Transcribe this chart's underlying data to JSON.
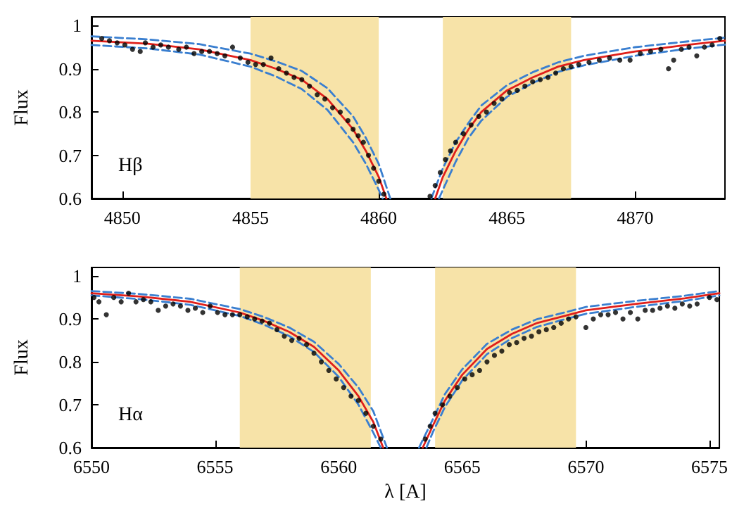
{
  "chart_data": [
    {
      "type": "scatter",
      "ylabel": "Flux",
      "annotations": [
        "Hβ"
      ],
      "xlim": [
        4848.8,
        4873.5
      ],
      "xticks": [
        4850,
        4855,
        4860,
        4865,
        4870
      ],
      "ylim": [
        0.6,
        1.02
      ],
      "yticks": [
        0.6,
        0.7,
        0.8,
        0.9,
        {
          "value": 1,
          "label": "1"
        }
      ],
      "grid": false,
      "bands": [
        {
          "axis": "x",
          "from": 4855,
          "to": 4860,
          "color": "#f7e3a8"
        },
        {
          "axis": "x",
          "from": 4862.5,
          "to": 4867.5,
          "color": "#f7e3a8"
        }
      ],
      "series": [
        {
          "type": "scatter",
          "color": "#000000",
          "marker": "circle",
          "x": [
            4849.2,
            4849.5,
            4849.8,
            4850.1,
            4850.4,
            4850.7,
            4850.9,
            4851.2,
            4851.5,
            4851.8,
            4852.2,
            4852.5,
            4852.8,
            4853.1,
            4853.4,
            4853.7,
            4854.0,
            4854.3,
            4854.6,
            4854.9,
            4855.2,
            4855.5,
            4855.8,
            4856.1,
            4856.4,
            4856.7,
            4857.0,
            4857.3,
            4857.6,
            4857.9,
            4858.2,
            4858.5,
            4858.8,
            4859.0,
            4859.2,
            4859.4,
            4859.6,
            4859.8,
            4860.0,
            4860.2,
            4862.0,
            4862.2,
            4862.4,
            4862.6,
            4862.8,
            4863.0,
            4863.3,
            4863.6,
            4863.9,
            4864.2,
            4864.5,
            4864.8,
            4865.1,
            4865.4,
            4865.7,
            4866.0,
            4866.3,
            4866.6,
            4866.9,
            4867.2,
            4867.5,
            4867.8,
            4868.2,
            4868.6,
            4869.0,
            4869.4,
            4869.8,
            4870.2,
            4870.6,
            4871.0,
            4871.3,
            4871.5,
            4871.8,
            4872.1,
            4872.4,
            4872.7,
            4873.0,
            4873.3
          ],
          "values": [
            0.97,
            0.965,
            0.96,
            0.955,
            0.945,
            0.94,
            0.96,
            0.95,
            0.955,
            0.95,
            0.945,
            0.95,
            0.935,
            0.94,
            0.94,
            0.935,
            0.93,
            0.95,
            0.925,
            0.915,
            0.91,
            0.91,
            0.925,
            0.9,
            0.89,
            0.88,
            0.875,
            0.86,
            0.84,
            0.83,
            0.81,
            0.8,
            0.78,
            0.76,
            0.745,
            0.73,
            0.7,
            0.67,
            0.64,
            0.61,
            0.605,
            0.63,
            0.66,
            0.69,
            0.71,
            0.73,
            0.75,
            0.77,
            0.79,
            0.8,
            0.82,
            0.83,
            0.845,
            0.85,
            0.86,
            0.87,
            0.875,
            0.88,
            0.89,
            0.9,
            0.905,
            0.91,
            0.915,
            0.92,
            0.925,
            0.92,
            0.92,
            0.935,
            0.94,
            0.945,
            0.9,
            0.92,
            0.945,
            0.95,
            0.93,
            0.95,
            0.955,
            0.97
          ]
        },
        {
          "type": "line",
          "color": "#3a7fd0",
          "line_style": "dashed",
          "x": [
            4848.8,
            4851,
            4853,
            4855,
            4856,
            4857,
            4858,
            4859,
            4859.5,
            4860,
            4860.15,
            4861.2,
            4862.35,
            4862.5,
            4863,
            4863.5,
            4864,
            4865,
            4866,
            4867,
            4868,
            4870,
            4872,
            4873.5
          ],
          "values": [
            0.955,
            0.947,
            0.933,
            0.905,
            0.882,
            0.853,
            0.805,
            0.73,
            0.68,
            0.62,
            0.6,
            null,
            0.6,
            0.62,
            0.685,
            0.74,
            0.78,
            0.835,
            0.867,
            0.893,
            0.908,
            0.93,
            0.946,
            0.956
          ]
        },
        {
          "type": "line",
          "color": "#3a7fd0",
          "line_style": "dashed",
          "x": [
            4848.8,
            4851,
            4853,
            4855,
            4856,
            4857,
            4858,
            4859,
            4859.5,
            4860,
            4860.45,
            4861.2,
            4862.05,
            4862.5,
            4863,
            4863.5,
            4864,
            4865,
            4866,
            4867,
            4868,
            4870,
            4872,
            4873.5
          ],
          "values": [
            0.975,
            0.968,
            0.957,
            0.935,
            0.917,
            0.895,
            0.855,
            0.79,
            0.74,
            0.68,
            0.6,
            null,
            0.6,
            0.67,
            0.73,
            0.775,
            0.815,
            0.862,
            0.892,
            0.915,
            0.93,
            0.95,
            0.963,
            0.972
          ]
        },
        {
          "type": "line",
          "color": "#e0201b",
          "line_style": "solid",
          "x": [
            4848.8,
            4851,
            4853,
            4855,
            4856,
            4857,
            4858,
            4859,
            4859.5,
            4860,
            4860.3,
            4861.2,
            4862.2,
            4862.5,
            4863,
            4863.5,
            4864,
            4865,
            4866,
            4867,
            4868,
            4870,
            4872,
            4873.5
          ],
          "values": [
            0.965,
            0.958,
            0.945,
            0.92,
            0.9,
            0.875,
            0.83,
            0.76,
            0.71,
            0.65,
            0.6,
            null,
            0.6,
            0.65,
            0.71,
            0.76,
            0.8,
            0.85,
            0.88,
            0.905,
            0.92,
            0.94,
            0.955,
            0.965
          ]
        }
      ]
    },
    {
      "type": "scatter",
      "xlabel": "λ [A]",
      "ylabel": "Flux",
      "annotations": [
        "Hα"
      ],
      "xlim": [
        6550,
        6575.4
      ],
      "xticks": [
        6550,
        6555,
        6560,
        6565,
        6570,
        6575
      ],
      "ylim": [
        0.6,
        1.02
      ],
      "yticks": [
        0.6,
        0.7,
        0.8,
        0.9,
        {
          "value": 1,
          "label": "1"
        }
      ],
      "grid": false,
      "bands": [
        {
          "axis": "x",
          "from": 6556,
          "to": 6561.3,
          "color": "#f7e3a8"
        },
        {
          "axis": "x",
          "from": 6563.9,
          "to": 6569.6,
          "color": "#f7e3a8"
        }
      ],
      "series": [
        {
          "type": "scatter",
          "color": "#000000",
          "marker": "circle",
          "x": [
            6550.1,
            6550.3,
            6550.6,
            6550.9,
            6551.2,
            6551.5,
            6551.8,
            6552.1,
            6552.4,
            6552.7,
            6553.0,
            6553.3,
            6553.6,
            6553.9,
            6554.2,
            6554.5,
            6554.8,
            6555.1,
            6555.4,
            6555.7,
            6556.0,
            6556.3,
            6556.6,
            6556.9,
            6557.2,
            6557.5,
            6557.8,
            6558.1,
            6558.4,
            6558.7,
            6559.0,
            6559.3,
            6559.6,
            6559.9,
            6560.2,
            6560.5,
            6560.8,
            6561.1,
            6561.4,
            6561.7,
            6563.5,
            6563.7,
            6563.9,
            6564.2,
            6564.5,
            6564.8,
            6565.1,
            6565.4,
            6565.7,
            6566.0,
            6566.3,
            6566.6,
            6566.9,
            6567.2,
            6567.5,
            6567.8,
            6568.1,
            6568.4,
            6568.7,
            6569.0,
            6569.3,
            6569.6,
            6570.0,
            6570.3,
            6570.6,
            6570.9,
            6571.2,
            6571.5,
            6571.8,
            6572.1,
            6572.4,
            6572.7,
            6573.0,
            6573.3,
            6573.6,
            6573.9,
            6574.2,
            6574.5,
            6575.0,
            6575.3
          ],
          "values": [
            0.95,
            0.94,
            0.91,
            0.95,
            0.94,
            0.96,
            0.94,
            0.945,
            0.94,
            0.92,
            0.93,
            0.935,
            0.93,
            0.92,
            0.925,
            0.915,
            0.93,
            0.915,
            0.91,
            0.91,
            0.91,
            0.905,
            0.9,
            0.895,
            0.89,
            0.875,
            0.86,
            0.85,
            0.855,
            0.84,
            0.82,
            0.8,
            0.78,
            0.76,
            0.74,
            0.72,
            0.71,
            0.68,
            0.65,
            0.62,
            0.62,
            0.65,
            0.68,
            0.7,
            0.72,
            0.74,
            0.76,
            0.77,
            0.78,
            0.8,
            0.815,
            0.825,
            0.84,
            0.845,
            0.855,
            0.86,
            0.87,
            0.875,
            0.88,
            0.89,
            0.9,
            0.905,
            0.88,
            0.9,
            0.91,
            0.91,
            0.915,
            0.9,
            0.915,
            0.9,
            0.92,
            0.92,
            0.925,
            0.93,
            0.925,
            0.935,
            0.93,
            0.935,
            0.95,
            0.945
          ]
        },
        {
          "type": "line",
          "color": "#3a7fd0",
          "line_style": "dashed",
          "x": [
            6550,
            6552,
            6554,
            6556,
            6557,
            6558,
            6559,
            6560,
            6560.8,
            6561.4,
            6561.7,
            6562.6,
            6563.55,
            6563.8,
            6564.3,
            6565,
            6566,
            6567,
            6568,
            6569,
            6570,
            6572,
            6574,
            6575.4
          ],
          "values": [
            0.955,
            0.946,
            0.933,
            0.907,
            0.886,
            0.86,
            0.823,
            0.765,
            0.7,
            0.635,
            0.6,
            null,
            0.6,
            0.635,
            0.695,
            0.757,
            0.818,
            0.855,
            0.881,
            0.897,
            0.912,
            0.928,
            0.942,
            0.955
          ]
        },
        {
          "type": "line",
          "color": "#3a7fd0",
          "line_style": "dashed",
          "x": [
            6550,
            6552,
            6554,
            6556,
            6557,
            6558,
            6559,
            6560,
            6560.8,
            6561.4,
            6561.95,
            6562.6,
            6563.25,
            6563.8,
            6564.3,
            6565,
            6566,
            6567,
            6568,
            6569,
            6570,
            6572,
            6574,
            6575.4
          ],
          "values": [
            0.965,
            0.958,
            0.947,
            0.923,
            0.904,
            0.88,
            0.847,
            0.795,
            0.74,
            0.685,
            0.6,
            null,
            0.6,
            0.665,
            0.725,
            0.783,
            0.842,
            0.875,
            0.899,
            0.913,
            0.928,
            0.942,
            0.954,
            0.965
          ]
        },
        {
          "type": "line",
          "color": "#e0201b",
          "line_style": "solid",
          "x": [
            6550,
            6552,
            6554,
            6556,
            6557,
            6558,
            6559,
            6560,
            6560.8,
            6561.4,
            6561.8,
            6562.6,
            6563.4,
            6563.8,
            6564.3,
            6565,
            6566,
            6567,
            6568,
            6569,
            6570,
            6572,
            6574,
            6575.4
          ],
          "values": [
            0.96,
            0.952,
            0.94,
            0.915,
            0.895,
            0.87,
            0.835,
            0.78,
            0.72,
            0.66,
            0.6,
            null,
            0.6,
            0.65,
            0.71,
            0.77,
            0.83,
            0.865,
            0.89,
            0.905,
            0.92,
            0.935,
            0.948,
            0.96
          ]
        }
      ]
    }
  ]
}
